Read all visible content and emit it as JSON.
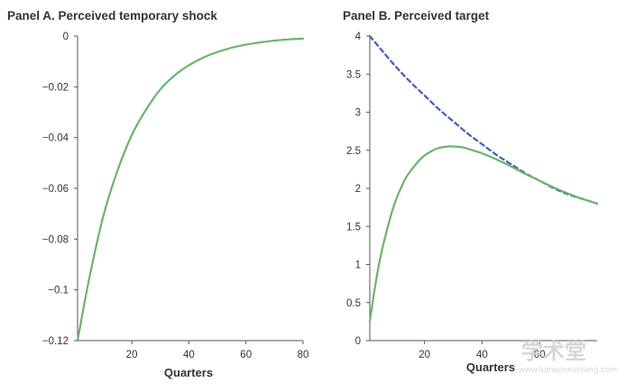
{
  "chart_data": [
    {
      "type": "line",
      "title": "Panel A. Perceived temporary shock",
      "xlabel": "Quarters",
      "ylabel": "",
      "xlim": [
        1,
        80
      ],
      "ylim": [
        -0.12,
        0
      ],
      "xticks": [
        20,
        40,
        60,
        80
      ],
      "yticks": [
        -0.12,
        -0.1,
        -0.08,
        -0.06,
        -0.04,
        -0.02,
        0
      ],
      "ytick_labels": [
        "−0.12",
        "−0.1",
        "−0.08",
        "−0.06",
        "−0.04",
        "−0.02",
        "0"
      ],
      "grid": false,
      "series": [
        {
          "color": "#6ab56a",
          "style": "solid",
          "x": [
            1,
            5,
            10,
            15,
            20,
            25,
            30,
            35,
            40,
            45,
            50,
            55,
            60,
            65,
            70,
            75,
            80
          ],
          "y": [
            -0.12,
            -0.096,
            -0.071,
            -0.053,
            -0.039,
            -0.029,
            -0.021,
            -0.0155,
            -0.0115,
            -0.0085,
            -0.0063,
            -0.0046,
            -0.0034,
            -0.0025,
            -0.0018,
            -0.0013,
            -0.001
          ]
        }
      ]
    },
    {
      "type": "line",
      "title": "Panel B. Perceived target",
      "xlabel": "Quarters",
      "ylabel": "",
      "xlim": [
        1,
        80
      ],
      "ylim": [
        0,
        4
      ],
      "xticks": [
        20,
        40,
        60
      ],
      "yticks": [
        0,
        0.5,
        1,
        1.5,
        2,
        2.5,
        3,
        3.5,
        4
      ],
      "ytick_labels": [
        "0",
        "0.5",
        "1",
        "1.5",
        "2",
        "2.5",
        "3",
        "3.5",
        "4"
      ],
      "grid": false,
      "series": [
        {
          "color": "#3f5fb8",
          "style": "dashed",
          "x": [
            1,
            5,
            10,
            15,
            20,
            25,
            30,
            35,
            40,
            45,
            50,
            55,
            60,
            65,
            70,
            75,
            80
          ],
          "y": [
            4.0,
            3.82,
            3.6,
            3.4,
            3.22,
            3.04,
            2.88,
            2.72,
            2.58,
            2.44,
            2.32,
            2.2,
            2.1,
            2.0,
            1.92,
            1.86,
            1.8
          ]
        },
        {
          "color": "#6ab56a",
          "style": "solid",
          "x": [
            1,
            3,
            5,
            8,
            10,
            13,
            15,
            18,
            20,
            23,
            25,
            28,
            30,
            33,
            35,
            40,
            45,
            50,
            55,
            60,
            65,
            70,
            75,
            80
          ],
          "y": [
            0.25,
            0.75,
            1.15,
            1.6,
            1.84,
            2.1,
            2.22,
            2.36,
            2.43,
            2.5,
            2.53,
            2.55,
            2.55,
            2.54,
            2.52,
            2.46,
            2.38,
            2.29,
            2.19,
            2.1,
            2.01,
            1.93,
            1.86,
            1.8
          ]
        }
      ]
    }
  ],
  "watermark": {
    "main": "学术堂",
    "sub": "www.lunwenxuetang.com"
  }
}
